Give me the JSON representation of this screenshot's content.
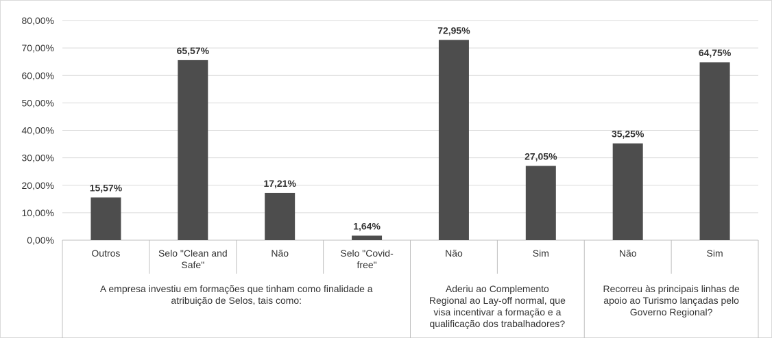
{
  "chart_data": {
    "type": "bar",
    "ylim": [
      0,
      80
    ],
    "y_ticks": [
      "0,00%",
      "10,00%",
      "20,00%",
      "30,00%",
      "40,00%",
      "50,00%",
      "60,00%",
      "70,00%",
      "80,00%"
    ],
    "grid": true,
    "bar_color": "#4d4d4d",
    "categories": [
      [
        "Outros"
      ],
      [
        "Selo \"Clean and",
        "Safe\""
      ],
      [
        "Não"
      ],
      [
        "Selo \"Covid-",
        "free\""
      ],
      [
        "Não"
      ],
      [
        "Sim"
      ],
      [
        "Não"
      ],
      [
        "Sim"
      ]
    ],
    "values": [
      15.57,
      65.57,
      17.21,
      1.64,
      72.95,
      27.05,
      35.25,
      64.75
    ],
    "data_labels": [
      "15,57%",
      "65,57%",
      "17,21%",
      "1,64%",
      "72,95%",
      "27,05%",
      "35,25%",
      "64,75%"
    ],
    "groups": [
      {
        "lines": [
          "A empresa investiu em formações que tinham como finalidade a",
          "atribuição de Selos, tais como:"
        ],
        "span": [
          0,
          3
        ]
      },
      {
        "lines": [
          "Aderiu ao Complemento",
          "Regional ao Lay-off normal, que",
          "visa incentivar a formação e a",
          "qualificação dos trabalhadores?"
        ],
        "span": [
          4,
          5
        ]
      },
      {
        "lines": [
          "Recorreu às principais linhas de",
          "apoio ao Turismo lançadas pelo",
          "Governo Regional?"
        ],
        "span": [
          6,
          7
        ]
      }
    ]
  }
}
